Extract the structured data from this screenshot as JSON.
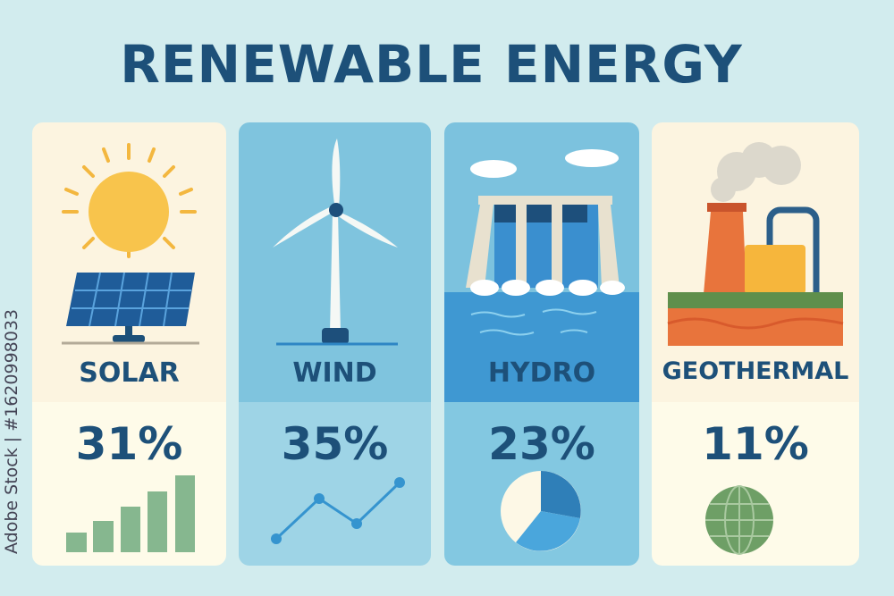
{
  "title": "RENEWABLE ENERGY",
  "watermark": "Adobe Stock | #1620998033",
  "cards": [
    {
      "label": "SOLAR",
      "percent": "31%",
      "icon": "sun-solar-panel",
      "mini_graphic": "bar-chart-icon"
    },
    {
      "label": "WIND",
      "percent": "35%",
      "icon": "wind-turbine",
      "mini_graphic": "line-chart-icon"
    },
    {
      "label": "HYDRO",
      "percent": "23%",
      "icon": "hydro-dam",
      "mini_graphic": "pie-chart-icon"
    },
    {
      "label": "GEOTHERMAL",
      "percent": "11%",
      "icon": "geothermal-plant",
      "mini_graphic": "globe-icon"
    }
  ],
  "colors": {
    "title": "#1d5079",
    "background": "#d2ecee",
    "bars": "#86b78f"
  }
}
